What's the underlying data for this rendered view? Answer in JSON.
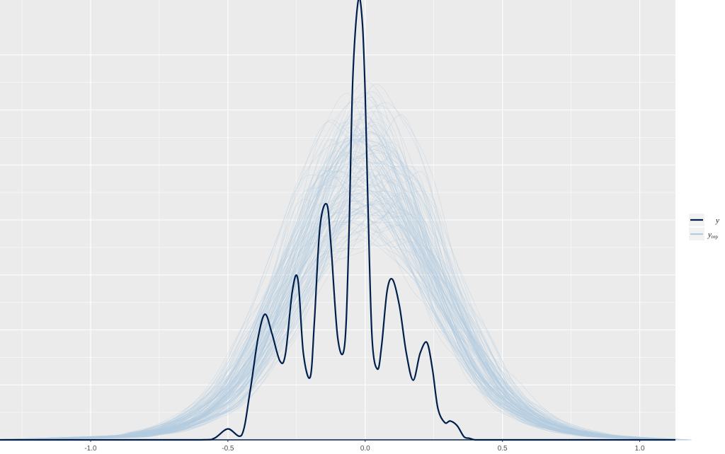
{
  "chart_data": {
    "type": "line",
    "title": "",
    "xlabel": "",
    "ylabel": "",
    "xlim": [
      -1.33,
      1.13
    ],
    "ylim": [
      0,
      2.8
    ],
    "x_ticks": [
      -1.0,
      -0.5,
      0.0,
      0.5,
      1.0
    ],
    "x_tick_labels": [
      "-1.0",
      "-0.5",
      "0.0",
      "0.5",
      "1.0"
    ],
    "y_ticks_shown": false,
    "grid": true,
    "legend_position": "right",
    "legend": [
      {
        "label": "y",
        "sub": "",
        "color": "#011f4b"
      },
      {
        "label": "y",
        "sub": "rep",
        "color": "#b3cde0"
      }
    ],
    "series": [
      {
        "name": "y",
        "color": "#011f4b",
        "x": [
          -1.33,
          -0.9,
          -0.6,
          -0.55,
          -0.5,
          -0.45,
          -0.42,
          -0.39,
          -0.365,
          -0.34,
          -0.31,
          -0.29,
          -0.265,
          -0.245,
          -0.225,
          -0.2,
          -0.185,
          -0.165,
          -0.14,
          -0.125,
          -0.1,
          -0.075,
          -0.06,
          -0.045,
          -0.025,
          -0.01,
          0.0,
          0.01,
          0.025,
          0.045,
          0.06,
          0.08,
          0.1,
          0.125,
          0.15,
          0.175,
          0.2,
          0.225,
          0.245,
          0.265,
          0.29,
          0.31,
          0.335,
          0.36,
          0.38,
          0.4,
          0.43,
          0.48,
          0.6,
          1.13
        ],
        "y": [
          0.0,
          0.0,
          0.0,
          0.01,
          0.07,
          0.03,
          0.3,
          0.65,
          0.8,
          0.68,
          0.5,
          0.55,
          0.95,
          1.02,
          0.55,
          0.4,
          0.75,
          1.35,
          1.5,
          1.25,
          0.65,
          0.6,
          1.25,
          2.3,
          2.8,
          2.65,
          2.2,
          1.5,
          0.65,
          0.45,
          0.6,
          0.95,
          1.02,
          0.85,
          0.55,
          0.38,
          0.55,
          0.62,
          0.45,
          0.2,
          0.11,
          0.12,
          0.09,
          0.02,
          0.01,
          0.0,
          0.0,
          0.0,
          0.0,
          0.0
        ]
      },
      {
        "name": "yrep",
        "color": "#b3cde0",
        "draws": 120,
        "x": [
          -1.33,
          -0.9,
          -0.8,
          -0.7,
          -0.6,
          -0.5,
          -0.4,
          -0.3,
          -0.2,
          -0.1,
          0.0,
          0.1,
          0.2,
          0.3,
          0.4,
          0.5,
          0.6,
          0.7,
          0.8,
          0.9,
          1.13
        ],
        "y": [
          0.0,
          0.02,
          0.04,
          0.08,
          0.16,
          0.3,
          0.55,
          0.9,
          1.3,
          1.62,
          1.75,
          1.62,
          1.3,
          0.9,
          0.55,
          0.3,
          0.16,
          0.08,
          0.04,
          0.02,
          0.0
        ]
      }
    ]
  }
}
